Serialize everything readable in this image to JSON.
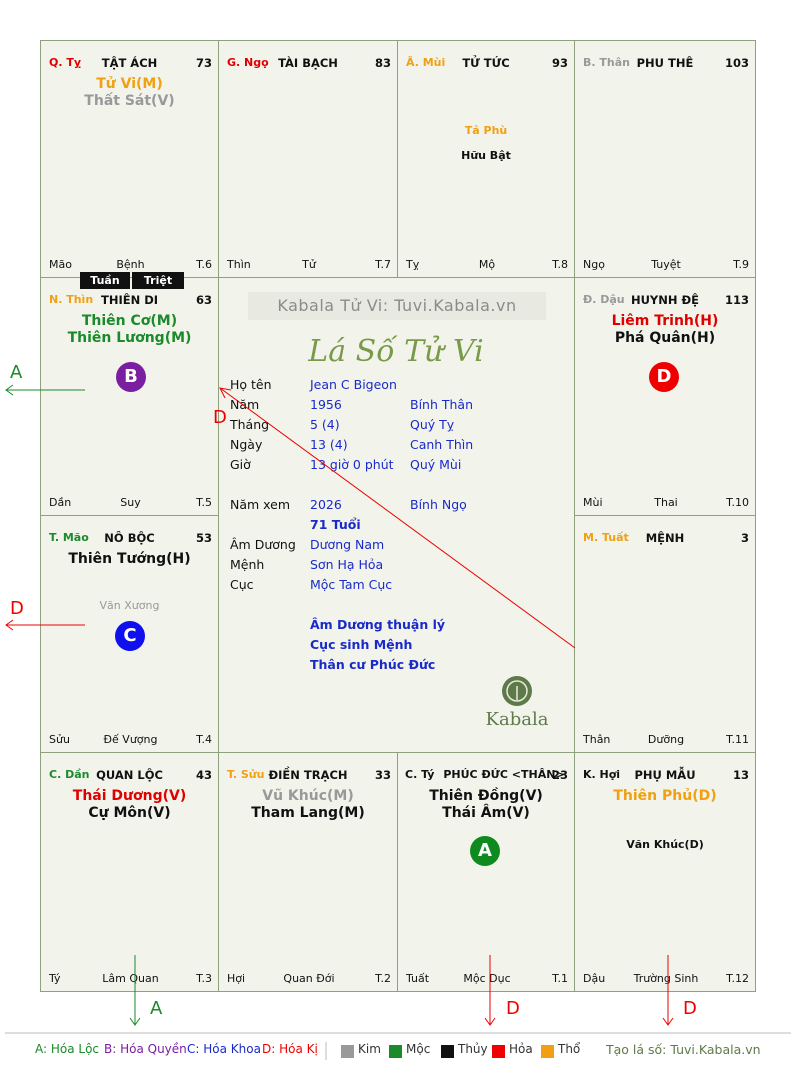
{
  "colors": {
    "kim": "#999999",
    "moc": "#1a8a2a",
    "thuy": "#111111",
    "hoa": "#ee0000",
    "tho": "#f0a010",
    "blue": "#1a2ac8"
  },
  "cells": {
    "ty": {
      "branch": "Q. Tỵ",
      "house": "TẬT ÁCH",
      "num": "73",
      "stars": [
        "Tử Vi(M)",
        "Thất Sát(V)"
      ],
      "minor": [],
      "foot": [
        "Mão",
        "Bệnh",
        "T.6"
      ]
    },
    "ngo": {
      "branch": "G. Ngọ",
      "house": "TÀI BẠCH",
      "num": "83",
      "stars": [],
      "minor": [],
      "foot": [
        "Thìn",
        "Tử",
        "T.7"
      ]
    },
    "mui": {
      "branch": "Ã. Mùi",
      "house": "TỬ TỨC",
      "num": "93",
      "stars": [],
      "minor": [
        "Tả Phù",
        "Hữu Bật"
      ],
      "foot": [
        "Tỵ",
        "Mộ",
        "T.8"
      ]
    },
    "than": {
      "branch": "B. Thân",
      "house": "PHU THÊ",
      "num": "103",
      "stars": [],
      "minor": [],
      "foot": [
        "Ngọ",
        "Tuyệt",
        "T.9"
      ]
    },
    "thin": {
      "branch": "N. Thìn",
      "house": "THIÊN DI",
      "num": "63",
      "stars": [
        "Thiên Cơ(M)",
        "Thiên Lương(M)"
      ],
      "minor": [],
      "foot": [
        "Dần",
        "Suy",
        "T.5"
      ]
    },
    "dau": {
      "branch": "Đ. Dậu",
      "house": "HUYNH ĐỆ",
      "num": "113",
      "stars": [
        "Liêm Trinh(H)",
        "Phá Quân(H)"
      ],
      "minor": [],
      "foot": [
        "Mùi",
        "Thai",
        "T.10"
      ]
    },
    "mao": {
      "branch": "T. Mão",
      "house": "NÔ BỘC",
      "num": "53",
      "stars": [
        "Thiên Tướng(H)"
      ],
      "minor": [
        "Văn Xương"
      ],
      "foot": [
        "Sửu",
        "Đế Vượng",
        "T.4"
      ]
    },
    "tuat": {
      "branch": "M. Tuất",
      "house": "MỆNH",
      "num": "3",
      "stars": [],
      "minor": [],
      "foot": [
        "Thân",
        "Dưỡng",
        "T.11"
      ]
    },
    "dan": {
      "branch": "C. Dần",
      "house": "QUAN LỘC",
      "num": "43",
      "stars": [
        "Thái Dương(V)",
        "Cự Môn(V)"
      ],
      "minor": [],
      "foot": [
        "Tý",
        "Lâm Quan",
        "T.3"
      ]
    },
    "suu": {
      "branch": "T. Sửu",
      "house": "ĐIỀN TRẠCH",
      "num": "33",
      "stars": [
        "Vũ Khúc(M)",
        "Tham Lang(M)"
      ],
      "minor": [],
      "foot": [
        "Hợi",
        "Quan Đới",
        "T.2"
      ]
    },
    "tyw": {
      "branch": "C. Tý",
      "house": "PHÚC ĐỨC <THÂN>",
      "num": "23",
      "stars": [
        "Thiên Đồng(V)",
        "Thái Âm(V)"
      ],
      "minor": [],
      "foot": [
        "Tuất",
        "Mộc Dục",
        "T.1"
      ]
    },
    "hoi": {
      "branch": "K. Hợi",
      "house": "PHỤ MẪU",
      "num": "13",
      "stars": [
        "Thiên Phủ(D)"
      ],
      "minor": [
        "Văn Khúc(D)"
      ],
      "foot": [
        "Dậu",
        "Trường Sinh",
        "T.12"
      ]
    }
  },
  "tags": {
    "tuan": "Tuần",
    "triet": "Triệt"
  },
  "circles": {
    "thin": "B",
    "dau": "D",
    "mao": "C",
    "tyw": "A"
  },
  "arrow_labels": {
    "left_top": "A",
    "left_mid": "D",
    "bottom_1": "A",
    "bottom_2": "D",
    "bottom_3": "D",
    "center": "D"
  },
  "center": {
    "watermark": "Kabala Tử Vi: Tuvi.Kabala.vn",
    "title": "Lá Số Tử Vi",
    "logo_text": "Kabala",
    "rows": [
      {
        "label": "Họ tên",
        "v1": "Jean C Bigeon",
        "v2": ""
      },
      {
        "label": "Năm",
        "v1": "1956",
        "v2": "Bính Thân"
      },
      {
        "label": "Tháng",
        "v1": "5  (4)",
        "v2": "Quý Tỵ"
      },
      {
        "label": "Ngày",
        "v1": "13  (4)",
        "v2": "Canh Thìn"
      },
      {
        "label": "Giờ",
        "v1": "13 giờ 0 phút",
        "v2": "Quý Mùi"
      },
      {
        "label": "Năm xem",
        "v1": "2026",
        "v2": "Bính Ngọ"
      },
      {
        "label": "",
        "v1": "71 Tuổi",
        "v2": ""
      },
      {
        "label": "Âm Dương",
        "v1": "Dương Nam",
        "v2": ""
      },
      {
        "label": "Mệnh",
        "v1": "Sơn Hạ Hỏa",
        "v2": ""
      },
      {
        "label": "Cục",
        "v1": "Mộc Tam Cục",
        "v2": ""
      }
    ],
    "notes": [
      "Âm Dương thuận lý",
      "Cục sinh Mệnh",
      "Thân cư Phúc Đức"
    ]
  },
  "legend": {
    "a": "A: Hóa Lộc",
    "b": "B: Hóa Quyền",
    "c": "C: Hóa Khoa",
    "d": "D: Hóa Kị",
    "kim": "Kim",
    "moc": "Mộc",
    "thuy": "Thủy",
    "hoa": "Hỏa",
    "tho": "Thổ",
    "site": "Tạo lá số: Tuvi.Kabala.vn"
  }
}
